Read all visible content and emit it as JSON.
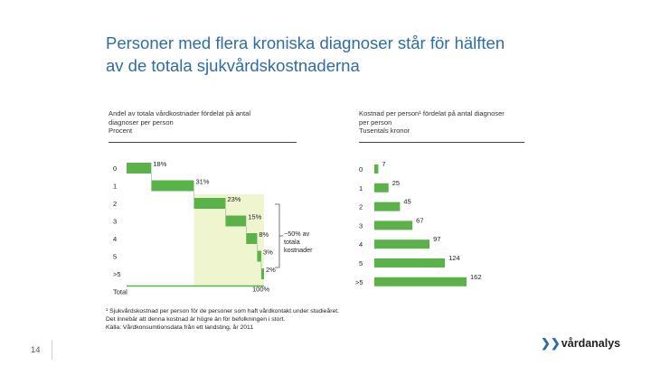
{
  "title_line1": "Personer med flera kroniska diagnoser står för hälften",
  "title_line2": "av de totala sjukvårdskostnaderna",
  "left_sub": [
    "Andel av totala vårdkostnader fördelat på antal",
    "diagnoser per person",
    "Procent"
  ],
  "right_sub": [
    "Kostnad per person¹ fördelat på antal diagnoser",
    "per person",
    "Tusentals kronor"
  ],
  "bracket_label": [
    "~50% av",
    "totala",
    "kostnader"
  ],
  "colors": {
    "green": "#5cb24a",
    "pale": "#eef5cf",
    "title": "#2e6da4"
  },
  "chart_data": [
    {
      "type": "bar",
      "subtype": "waterfall",
      "categories": [
        "0",
        "1",
        "2",
        "3",
        "4",
        "5",
        ">5",
        "Total"
      ],
      "values": [
        18,
        31,
        23,
        15,
        8,
        3,
        2,
        100
      ],
      "labels": [
        "18%",
        "31%",
        "23%",
        "15%",
        "8%",
        "3%",
        "2%",
        "100%"
      ]
    },
    {
      "type": "bar",
      "orientation": "horizontal",
      "categories": [
        "0",
        "1",
        "2",
        "3",
        "4",
        "5",
        ">5"
      ],
      "values": [
        7,
        25,
        45,
        67,
        97,
        124,
        162
      ],
      "labels": [
        "7",
        "25",
        "45",
        "67",
        "97",
        "124",
        "162"
      ]
    }
  ],
  "footnote": [
    "¹ Sjukvårdskostnad per person för de personer som haft vårdkontakt under studieåret.",
    "Det innebär att denna kostnad är högre än för befolkningen i stort.",
    "Källa: Vårdkonsumtionsdata från ett landsting, år 2011"
  ],
  "page_number": "14",
  "logo_text": "vårdanalys"
}
